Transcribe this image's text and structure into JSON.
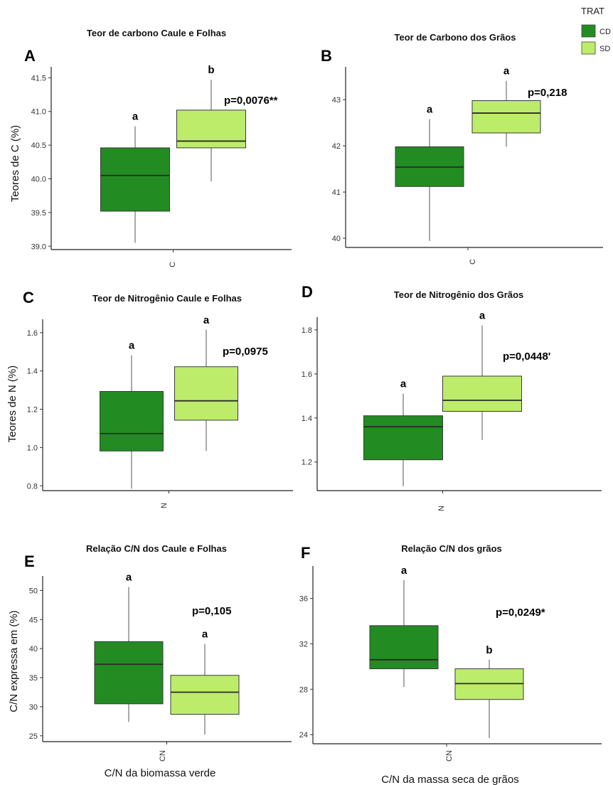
{
  "legend": {
    "title": "TRAT",
    "items": [
      {
        "label": "CD",
        "color": "#228b22"
      },
      {
        "label": "SD",
        "color": "#bdec6b"
      }
    ]
  },
  "chart_data": [
    {
      "panel": "A",
      "type": "boxplot",
      "title": "Teor de carbono Caule e Folhas",
      "ylabel": "Teores de C (%)",
      "xlabel": "",
      "category": "C",
      "ylim": [
        38.95,
        41.62
      ],
      "yticks": [
        39.0,
        39.5,
        40.0,
        40.5,
        41.0,
        41.5
      ],
      "ytick_labels": [
        "39.0",
        "39.5",
        "40.0",
        "40.5",
        "41.0",
        "41.5"
      ],
      "p_value": "p=0,0076**",
      "series": [
        {
          "name": "CD",
          "min": 39.05,
          "q1": 39.52,
          "median": 40.05,
          "q3": 40.46,
          "max": 40.78,
          "letter": "a"
        },
        {
          "name": "SD",
          "min": 39.96,
          "q1": 40.46,
          "median": 40.56,
          "q3": 41.02,
          "max": 41.47,
          "letter": "b"
        }
      ]
    },
    {
      "panel": "B",
      "type": "boxplot",
      "title": "Teor de Carbono dos Grãos",
      "ylabel": "",
      "xlabel": "",
      "category": "C",
      "ylim": [
        39.8,
        43.65
      ],
      "yticks": [
        40,
        41,
        42,
        43
      ],
      "ytick_labels": [
        "40",
        "41",
        "42",
        "43"
      ],
      "p_value": "p=0,218",
      "series": [
        {
          "name": "CD",
          "min": 39.94,
          "q1": 41.12,
          "median": 41.54,
          "q3": 41.98,
          "max": 42.58,
          "letter": "a"
        },
        {
          "name": "SD",
          "min": 41.98,
          "q1": 42.28,
          "median": 42.71,
          "q3": 42.98,
          "max": 43.41,
          "letter": "a"
        }
      ]
    },
    {
      "panel": "C",
      "type": "boxplot",
      "title": "Teor de Nitrogênio Caule e Folhas",
      "ylabel": "Teores de N (%)",
      "xlabel": "",
      "category": "N",
      "ylim": [
        0.775,
        1.655
      ],
      "yticks": [
        0.8,
        1.0,
        1.2,
        1.4,
        1.6
      ],
      "ytick_labels": [
        "0.8",
        "1.0",
        "1.2",
        "1.4",
        "1.6"
      ],
      "p_value": "p=0,0975",
      "series": [
        {
          "name": "CD",
          "min": 0.785,
          "q1": 0.982,
          "median": 1.073,
          "q3": 1.293,
          "max": 1.482,
          "letter": "a"
        },
        {
          "name": "SD",
          "min": 0.982,
          "q1": 1.143,
          "median": 1.244,
          "q3": 1.422,
          "max": 1.615,
          "letter": "a"
        }
      ]
    },
    {
      "panel": "D",
      "type": "boxplot",
      "title": "Teor de Nitrogênio dos Grãos",
      "ylabel": "",
      "xlabel": "",
      "category": "N",
      "ylim": [
        1.07,
        1.845
      ],
      "yticks": [
        1.2,
        1.4,
        1.6,
        1.8
      ],
      "ytick_labels": [
        "1.2",
        "1.4",
        "1.6",
        "1.8"
      ],
      "p_value": "p=0,0448'",
      "series": [
        {
          "name": "CD",
          "min": 1.09,
          "q1": 1.21,
          "median": 1.36,
          "q3": 1.41,
          "max": 1.51,
          "letter": "a"
        },
        {
          "name": "SD",
          "min": 1.3,
          "q1": 1.43,
          "median": 1.48,
          "q3": 1.59,
          "max": 1.82,
          "letter": "a"
        }
      ]
    },
    {
      "panel": "E",
      "type": "boxplot",
      "title": "Relação C/N dos Caule e Folhas",
      "ylabel": "C/N expressa em (%)",
      "xlabel": "C/N da biomassa verde",
      "category": "CN",
      "ylim": [
        24,
        52
      ],
      "yticks": [
        25,
        30,
        35,
        40,
        45,
        50
      ],
      "ytick_labels": [
        "25",
        "30",
        "35",
        "40",
        "45",
        "50"
      ],
      "p_value": "p=0,105",
      "series": [
        {
          "name": "CD",
          "min": 27.4,
          "q1": 30.5,
          "median": 37.3,
          "q3": 41.2,
          "max": 50.6,
          "letter": "a"
        },
        {
          "name": "SD",
          "min": 25.2,
          "q1": 28.7,
          "median": 32.5,
          "q3": 35.4,
          "max": 40.8,
          "letter": "a"
        }
      ]
    },
    {
      "panel": "F",
      "type": "boxplot",
      "title": "Relação C/N dos grãos",
      "ylabel": "",
      "xlabel": "C/N da massa seca de grãos",
      "category": "CN",
      "ylim": [
        23.2,
        38.6
      ],
      "yticks": [
        24,
        28,
        32,
        36
      ],
      "ytick_labels": [
        "24",
        "28",
        "32",
        "36"
      ],
      "p_value": "p=0,0249*",
      "series": [
        {
          "name": "CD",
          "min": 28.2,
          "q1": 29.8,
          "median": 30.6,
          "q3": 33.6,
          "max": 37.6,
          "letter": "a"
        },
        {
          "name": "SD",
          "min": 23.7,
          "q1": 27.1,
          "median": 28.5,
          "q3": 29.8,
          "max": 30.6,
          "letter": "b"
        }
      ]
    }
  ]
}
